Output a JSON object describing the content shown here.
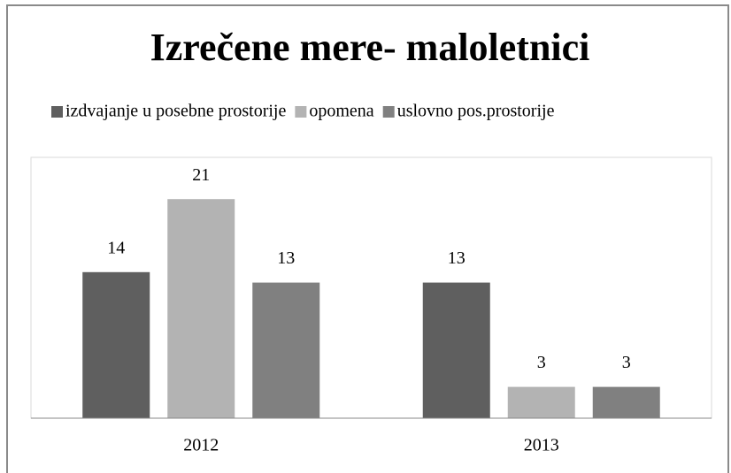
{
  "chart_data": {
    "type": "bar",
    "title": "Izrečene mere- maloletnici",
    "categories": [
      "2012",
      "2013"
    ],
    "series": [
      {
        "name": "izdvajanje u posebne prostorije",
        "color": "#5f5f5f",
        "values": [
          14,
          13
        ]
      },
      {
        "name": "opomena",
        "color": "#b3b3b3",
        "values": [
          21,
          3
        ]
      },
      {
        "name": "uslovno pos.prostorije",
        "color": "#808080",
        "values": [
          13,
          3
        ]
      }
    ],
    "ylim": [
      0,
      25
    ],
    "legend": "top"
  }
}
